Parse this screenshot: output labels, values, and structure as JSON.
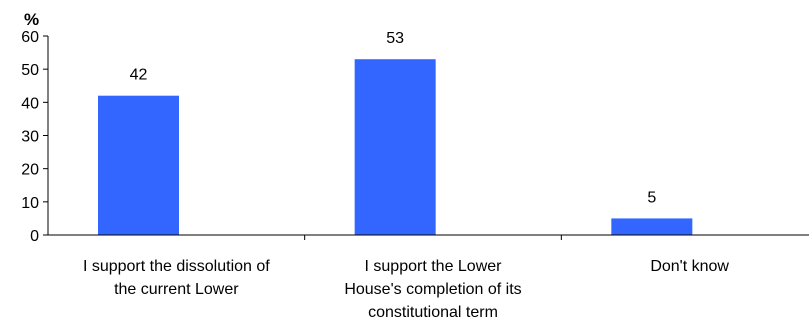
{
  "chart_data": {
    "type": "bar",
    "unit_label": "%",
    "categories": [
      [
        "I support the dissolution of",
        "the current Lower"
      ],
      [
        "I support the Lower",
        "House's completion of its",
        "constitutional term"
      ],
      [
        "Don't know"
      ]
    ],
    "values": [
      42,
      53,
      5
    ],
    "ylim": [
      0,
      60
    ],
    "yticks": [
      0,
      10,
      20,
      30,
      40,
      50,
      60
    ],
    "grid": false,
    "legend": "none",
    "bar_color": "#3366FF"
  }
}
